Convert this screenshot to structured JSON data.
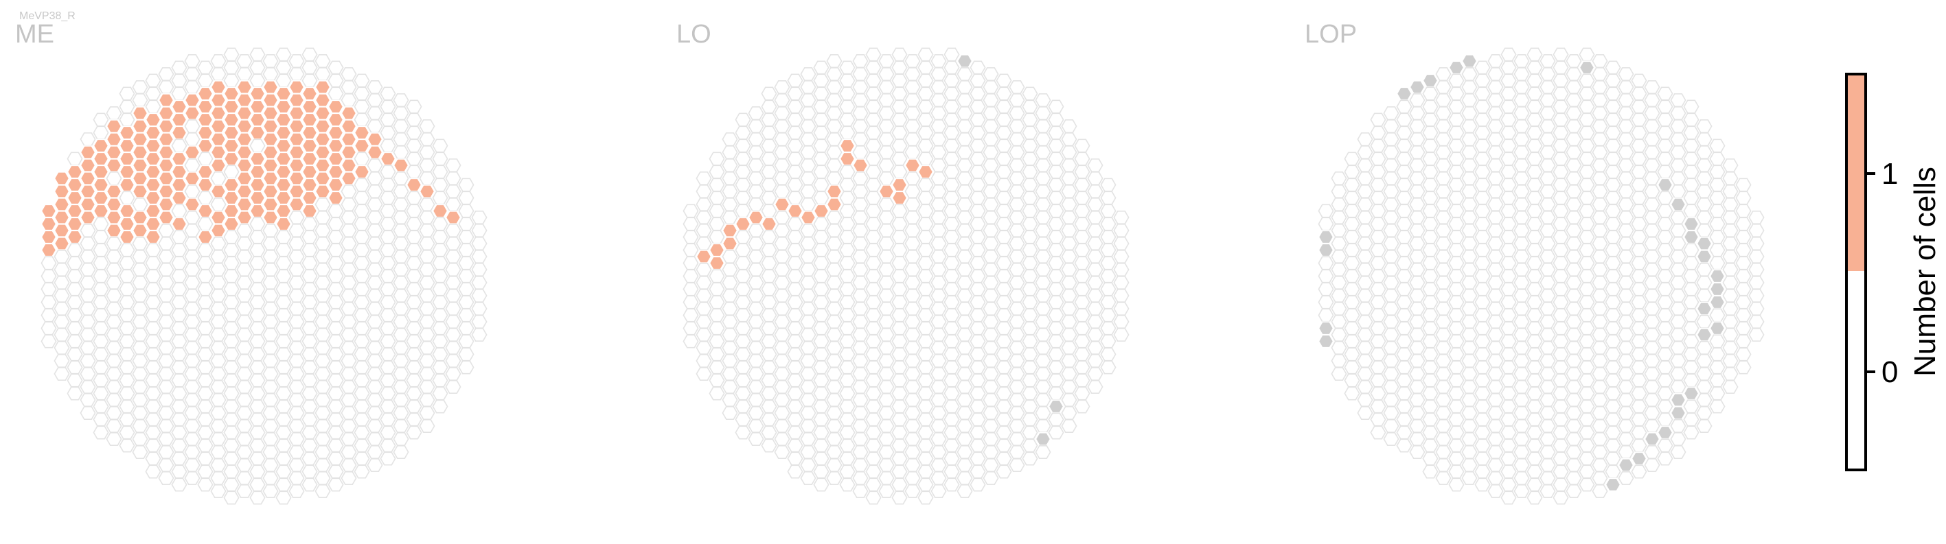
{
  "cell_type": "MeVP38_R",
  "colors": {
    "filled": "#f8b194",
    "edge": "#cfcfcf",
    "empty_stroke": "#e3e3e3",
    "background": "#ffffff"
  },
  "chart_data": {
    "type": "heatmap",
    "description_kind": "hexagonal eye-map per neuropil",
    "panels": [
      {
        "title": "ME",
        "value_counts": {
          "0": "all remaining columns",
          "1": "filled columns"
        },
        "filled_cells": [
          [
            13,
            3
          ],
          [
            14,
            3
          ],
          [
            15,
            3
          ],
          [
            16,
            3
          ],
          [
            17,
            3
          ],
          [
            18,
            3
          ],
          [
            19,
            3
          ],
          [
            20,
            3
          ],
          [
            21,
            3
          ],
          [
            22,
            3
          ],
          [
            10,
            4
          ],
          [
            11,
            4
          ],
          [
            12,
            4
          ],
          [
            13,
            4
          ],
          [
            14,
            4
          ],
          [
            15,
            4
          ],
          [
            16,
            4
          ],
          [
            17,
            4
          ],
          [
            18,
            4
          ],
          [
            19,
            4
          ],
          [
            20,
            4
          ],
          [
            21,
            4
          ],
          [
            22,
            4
          ],
          [
            23,
            4
          ],
          [
            8,
            5
          ],
          [
            9,
            5
          ],
          [
            10,
            5
          ],
          [
            11,
            5
          ],
          [
            12,
            5
          ],
          [
            13,
            5
          ],
          [
            14,
            5
          ],
          [
            15,
            5
          ],
          [
            16,
            5
          ],
          [
            17,
            5
          ],
          [
            18,
            5
          ],
          [
            19,
            5
          ],
          [
            20,
            5
          ],
          [
            21,
            5
          ],
          [
            22,
            5
          ],
          [
            23,
            5
          ],
          [
            24,
            5
          ],
          [
            6,
            6
          ],
          [
            7,
            6
          ],
          [
            8,
            6
          ],
          [
            9,
            6
          ],
          [
            10,
            6
          ],
          [
            11,
            6
          ],
          [
            13,
            6
          ],
          [
            14,
            6
          ],
          [
            15,
            6
          ],
          [
            16,
            6
          ],
          [
            17,
            6
          ],
          [
            18,
            6
          ],
          [
            19,
            6
          ],
          [
            20,
            6
          ],
          [
            21,
            6
          ],
          [
            22,
            6
          ],
          [
            23,
            6
          ],
          [
            24,
            6
          ],
          [
            25,
            6
          ],
          [
            5,
            7
          ],
          [
            6,
            7
          ],
          [
            7,
            7
          ],
          [
            8,
            7
          ],
          [
            9,
            7
          ],
          [
            10,
            7
          ],
          [
            13,
            7
          ],
          [
            14,
            7
          ],
          [
            15,
            7
          ],
          [
            16,
            7
          ],
          [
            18,
            7
          ],
          [
            19,
            7
          ],
          [
            20,
            7
          ],
          [
            21,
            7
          ],
          [
            22,
            7
          ],
          [
            23,
            7
          ],
          [
            24,
            7
          ],
          [
            25,
            7
          ],
          [
            26,
            7
          ],
          [
            4,
            8
          ],
          [
            5,
            8
          ],
          [
            6,
            8
          ],
          [
            7,
            8
          ],
          [
            8,
            8
          ],
          [
            9,
            8
          ],
          [
            10,
            8
          ],
          [
            11,
            8
          ],
          [
            12,
            8
          ],
          [
            14,
            8
          ],
          [
            15,
            8
          ],
          [
            16,
            8
          ],
          [
            17,
            8
          ],
          [
            18,
            8
          ],
          [
            19,
            8
          ],
          [
            20,
            8
          ],
          [
            21,
            8
          ],
          [
            22,
            8
          ],
          [
            23,
            8
          ],
          [
            24,
            8
          ],
          [
            26,
            8
          ],
          [
            27,
            8
          ],
          [
            3,
            9
          ],
          [
            4,
            9
          ],
          [
            5,
            9
          ],
          [
            6,
            9
          ],
          [
            7,
            9
          ],
          [
            8,
            9
          ],
          [
            9,
            9
          ],
          [
            10,
            9
          ],
          [
            11,
            9
          ],
          [
            13,
            9
          ],
          [
            14,
            9
          ],
          [
            16,
            9
          ],
          [
            17,
            9
          ],
          [
            18,
            9
          ],
          [
            19,
            9
          ],
          [
            20,
            9
          ],
          [
            21,
            9
          ],
          [
            22,
            9
          ],
          [
            23,
            9
          ],
          [
            24,
            9
          ],
          [
            25,
            9
          ],
          [
            28,
            9
          ],
          [
            2,
            10
          ],
          [
            3,
            10
          ],
          [
            4,
            10
          ],
          [
            5,
            10
          ],
          [
            7,
            10
          ],
          [
            8,
            10
          ],
          [
            9,
            10
          ],
          [
            10,
            10
          ],
          [
            11,
            10
          ],
          [
            12,
            10
          ],
          [
            13,
            10
          ],
          [
            15,
            10
          ],
          [
            16,
            10
          ],
          [
            17,
            10
          ],
          [
            18,
            10
          ],
          [
            19,
            10
          ],
          [
            20,
            10
          ],
          [
            21,
            10
          ],
          [
            22,
            10
          ],
          [
            23,
            10
          ],
          [
            24,
            10
          ],
          [
            29,
            10
          ],
          [
            1,
            11
          ],
          [
            2,
            11
          ],
          [
            3,
            11
          ],
          [
            4,
            11
          ],
          [
            5,
            11
          ],
          [
            6,
            11
          ],
          [
            8,
            11
          ],
          [
            9,
            11
          ],
          [
            10,
            11
          ],
          [
            11,
            11
          ],
          [
            14,
            11
          ],
          [
            15,
            11
          ],
          [
            16,
            11
          ],
          [
            17,
            11
          ],
          [
            18,
            11
          ],
          [
            19,
            11
          ],
          [
            20,
            11
          ],
          [
            21,
            11
          ],
          [
            22,
            11
          ],
          [
            23,
            11
          ],
          [
            30,
            11
          ],
          [
            0,
            12
          ],
          [
            1,
            12
          ],
          [
            2,
            12
          ],
          [
            3,
            12
          ],
          [
            4,
            12
          ],
          [
            5,
            12
          ],
          [
            6,
            12
          ],
          [
            7,
            12
          ],
          [
            9,
            12
          ],
          [
            10,
            12
          ],
          [
            12,
            12
          ],
          [
            13,
            12
          ],
          [
            15,
            12
          ],
          [
            16,
            12
          ],
          [
            17,
            12
          ],
          [
            18,
            12
          ],
          [
            19,
            12
          ],
          [
            20,
            12
          ],
          [
            21,
            12
          ],
          [
            31,
            12
          ],
          [
            1,
            13
          ],
          [
            2,
            13
          ],
          [
            3,
            13
          ],
          [
            4,
            13
          ],
          [
            6,
            13
          ],
          [
            7,
            13
          ],
          [
            8,
            13
          ],
          [
            9,
            13
          ],
          [
            10,
            13
          ],
          [
            11,
            13
          ],
          [
            14,
            13
          ],
          [
            15,
            13
          ],
          [
            16,
            13
          ],
          [
            18,
            13
          ],
          [
            19,
            13
          ],
          [
            32,
            13
          ],
          [
            1,
            14
          ],
          [
            2,
            14
          ],
          [
            3,
            14
          ],
          [
            6,
            14
          ],
          [
            7,
            14
          ],
          [
            8,
            14
          ],
          [
            9,
            14
          ],
          [
            13,
            14
          ],
          [
            14,
            14
          ],
          [
            1,
            15
          ],
          [
            2,
            15
          ]
        ],
        "edge_cells": []
      },
      {
        "title": "LO",
        "filled_cells": [
          [
            13,
            7
          ],
          [
            13,
            8
          ],
          [
            14,
            9
          ],
          [
            18,
            9
          ],
          [
            19,
            9
          ],
          [
            17,
            10
          ],
          [
            12,
            11
          ],
          [
            16,
            11
          ],
          [
            17,
            11
          ],
          [
            8,
            12
          ],
          [
            9,
            12
          ],
          [
            11,
            12
          ],
          [
            12,
            12
          ],
          [
            5,
            13
          ],
          [
            6,
            13
          ],
          [
            7,
            13
          ],
          [
            10,
            13
          ],
          [
            4,
            14
          ],
          [
            3,
            15
          ],
          [
            4,
            15
          ],
          [
            2,
            16
          ],
          [
            3,
            16
          ]
        ],
        "edge_cells": [
          [
            18,
            0
          ],
          [
            22,
            1
          ],
          [
            3,
            7
          ],
          [
            4,
            6
          ],
          [
            0,
            13
          ],
          [
            0,
            21
          ],
          [
            1,
            28
          ],
          [
            29,
            27
          ],
          [
            28,
            30
          ],
          [
            25,
            34
          ],
          [
            24,
            36
          ],
          [
            23,
            37
          ],
          [
            19,
            38
          ],
          [
            17,
            38
          ],
          [
            15,
            38
          ],
          [
            13,
            38
          ],
          [
            11,
            38
          ],
          [
            9,
            38
          ]
        ]
      },
      {
        "title": "LOP",
        "filled_cells": [],
        "edge_cells": [
          [
            16,
            0
          ],
          [
            20,
            0
          ],
          [
            21,
            1
          ],
          [
            11,
            1
          ],
          [
            12,
            1
          ],
          [
            9,
            2
          ],
          [
            8,
            3
          ],
          [
            7,
            3
          ],
          [
            6,
            4
          ],
          [
            5,
            4
          ],
          [
            4,
            5
          ],
          [
            3,
            6
          ],
          [
            3,
            7
          ],
          [
            2,
            8
          ],
          [
            1,
            9
          ],
          [
            1,
            10
          ],
          [
            0,
            11
          ],
          [
            0,
            12
          ],
          [
            0,
            13
          ],
          [
            1,
            14
          ],
          [
            1,
            15
          ],
          [
            0,
            16
          ],
          [
            0,
            17
          ],
          [
            0,
            18
          ],
          [
            0,
            19
          ],
          [
            0,
            20
          ],
          [
            1,
            21
          ],
          [
            1,
            22
          ],
          [
            1,
            23
          ],
          [
            1,
            24
          ],
          [
            1,
            25
          ],
          [
            1,
            26
          ],
          [
            1,
            27
          ],
          [
            1,
            28
          ],
          [
            2,
            30
          ],
          [
            3,
            31
          ],
          [
            3,
            32
          ],
          [
            4,
            33
          ],
          [
            4,
            34
          ],
          [
            5,
            35
          ],
          [
            5,
            36
          ],
          [
            6,
            36
          ],
          [
            27,
            10
          ],
          [
            28,
            12
          ],
          [
            29,
            13
          ],
          [
            29,
            14
          ],
          [
            30,
            15
          ],
          [
            30,
            16
          ],
          [
            31,
            17
          ],
          [
            31,
            18
          ],
          [
            31,
            19
          ],
          [
            30,
            20
          ],
          [
            31,
            21
          ],
          [
            30,
            22
          ],
          [
            29,
            26
          ],
          [
            28,
            27
          ],
          [
            28,
            28
          ],
          [
            27,
            29
          ],
          [
            26,
            30
          ],
          [
            25,
            31
          ],
          [
            24,
            32
          ],
          [
            23,
            33
          ],
          [
            8,
            36
          ],
          [
            9,
            37
          ],
          [
            10,
            38
          ],
          [
            12,
            38
          ],
          [
            14,
            38
          ],
          [
            16,
            38
          ],
          [
            18,
            38
          ],
          [
            20,
            37
          ],
          [
            23,
            36
          ]
        ]
      }
    ],
    "colorbar": {
      "label": "Number of cells",
      "ticks": [
        0,
        1
      ],
      "range": [
        -0.5,
        1.5
      ],
      "segments": [
        {
          "from": -0.5,
          "to": 0.5,
          "color": "#ffffff"
        },
        {
          "from": 0.5,
          "to": 1.5,
          "color": "#f8b194"
        }
      ]
    }
  }
}
